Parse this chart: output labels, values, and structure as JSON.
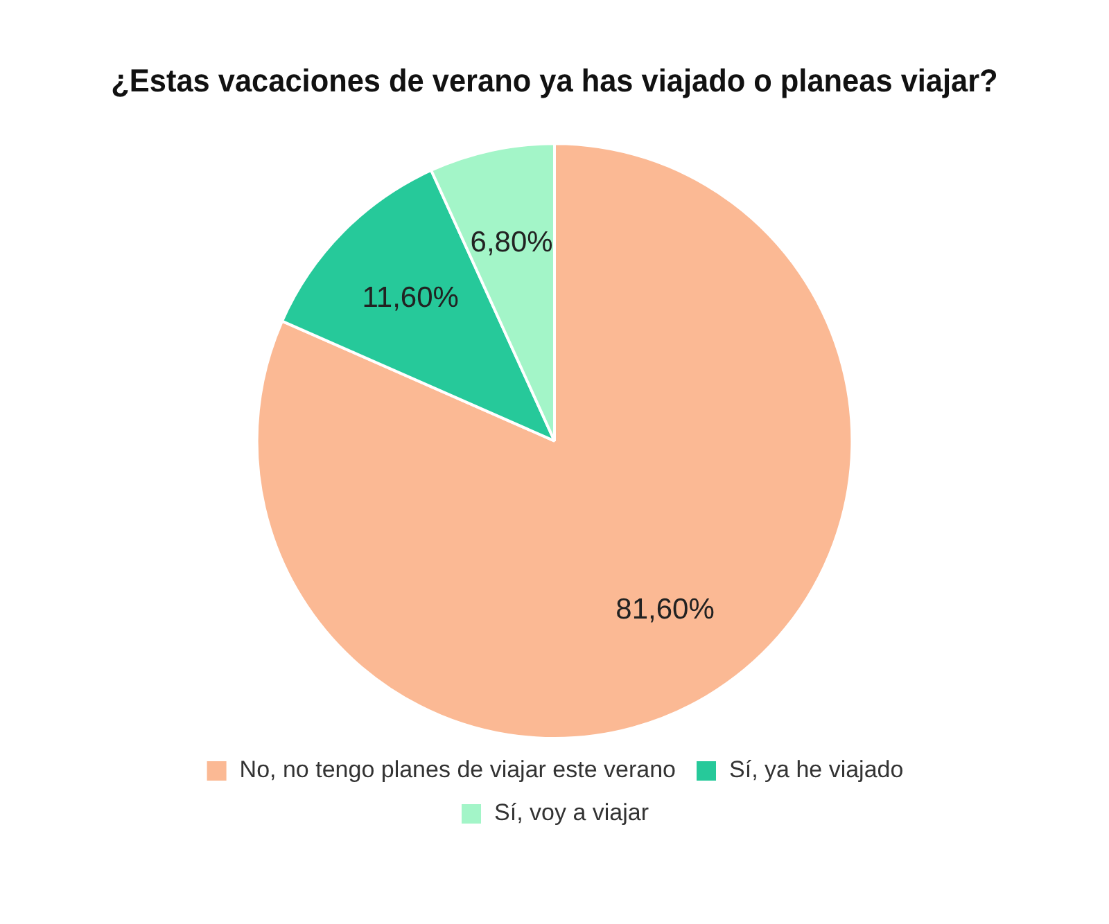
{
  "chart_data": {
    "type": "pie",
    "title": "¿Estas vacaciones de verano ya has viajado o planeas viajar?",
    "categories": [
      "No, no tengo planes de viajar este verano",
      "Sí, ya he viajado",
      "Sí, voy a viajar"
    ],
    "values": [
      81.6,
      11.6,
      6.8
    ],
    "colors": [
      "#fbb994",
      "#26c99a",
      "#a3f5c8"
    ],
    "value_labels": [
      "81,60%",
      "11,60%",
      "6,80%"
    ],
    "legend": "bottom"
  }
}
